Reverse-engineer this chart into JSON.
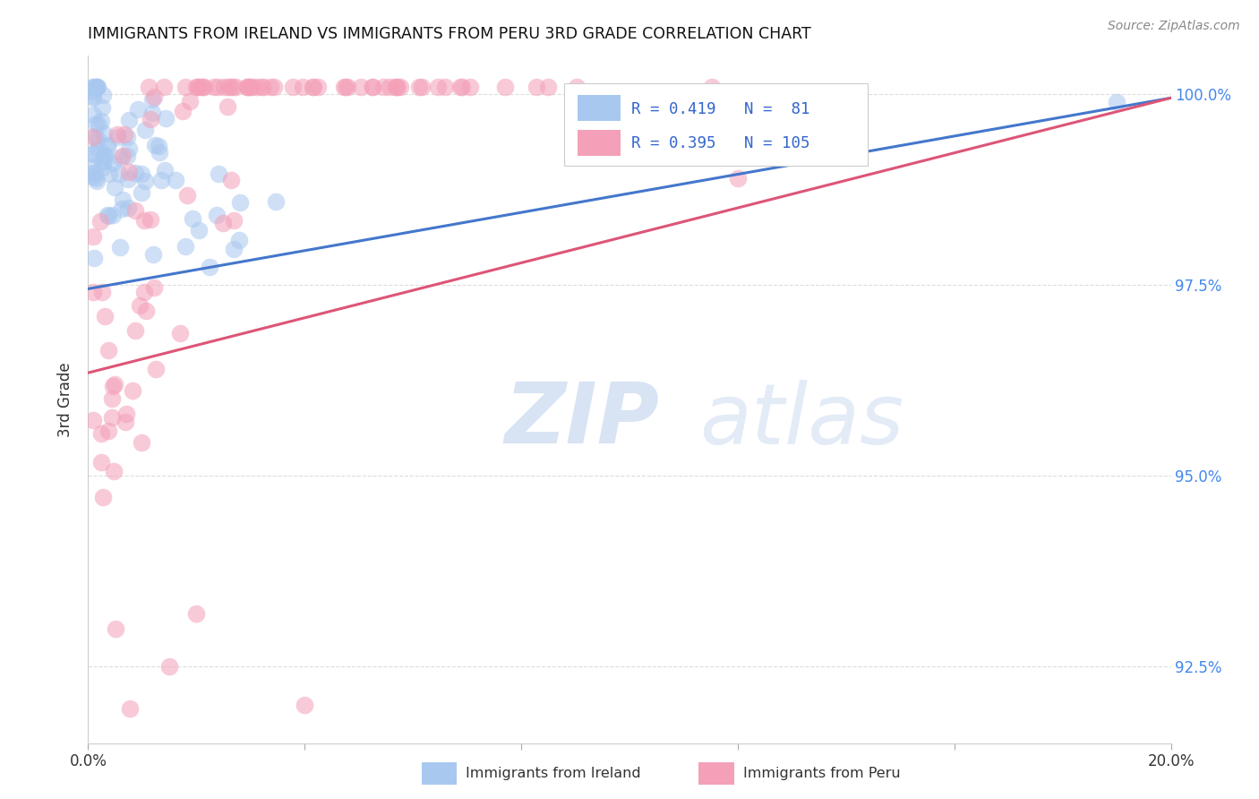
{
  "title": "IMMIGRANTS FROM IRELAND VS IMMIGRANTS FROM PERU 3RD GRADE CORRELATION CHART",
  "source": "Source: ZipAtlas.com",
  "ylabel": "3rd Grade",
  "xlim": [
    0.0,
    0.2
  ],
  "ylim": [
    0.915,
    1.005
  ],
  "x_tick_positions": [
    0.0,
    0.04,
    0.08,
    0.12,
    0.16,
    0.2
  ],
  "x_tick_labels": [
    "0.0%",
    "",
    "",
    "",
    "",
    "20.0%"
  ],
  "y_tick_positions": [
    0.925,
    0.95,
    0.975,
    1.0
  ],
  "y_tick_labels": [
    "92.5%",
    "95.0%",
    "97.5%",
    "100.0%"
  ],
  "legend_ireland": "Immigrants from Ireland",
  "legend_peru": "Immigrants from Peru",
  "ireland_R": 0.419,
  "ireland_N": 81,
  "peru_R": 0.395,
  "peru_N": 105,
  "ireland_color": "#a8c8f0",
  "peru_color": "#f4a0b8",
  "ireland_line_color": "#4477cc",
  "peru_line_color": "#dd5577",
  "background_color": "#ffffff",
  "grid_color": "#dddddd",
  "ireland_line_y0": 0.9745,
  "ireland_line_y1": 0.9995,
  "peru_line_y0": 0.9635,
  "peru_line_y1": 0.9995
}
